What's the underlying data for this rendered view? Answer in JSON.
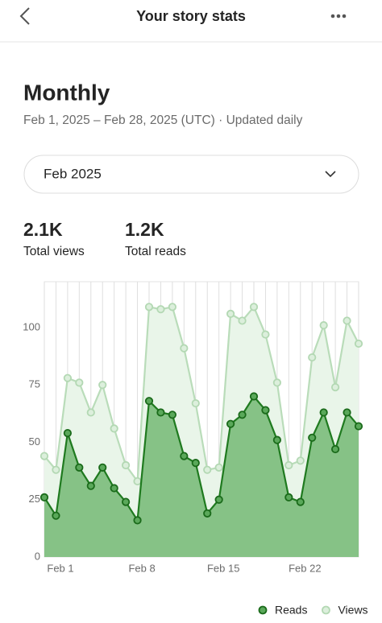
{
  "header": {
    "title": "Your story stats"
  },
  "period": {
    "title": "Monthly",
    "range": "Feb 1, 2025 – Feb 28, 2025 (UTC) · Updated daily"
  },
  "selector": {
    "value": "Feb 2025"
  },
  "stats": [
    {
      "value": "2.1K",
      "label": "Total views"
    },
    {
      "value": "1.2K",
      "label": "Total reads"
    }
  ],
  "chart_data": {
    "type": "area",
    "categories": [
      "Feb 1",
      null,
      null,
      null,
      null,
      null,
      null,
      "Feb 8",
      null,
      null,
      null,
      null,
      null,
      null,
      "Feb 15",
      null,
      null,
      null,
      null,
      null,
      null,
      "Feb 22",
      null,
      null,
      null,
      null,
      null,
      null
    ],
    "series": [
      {
        "name": "Reads",
        "color": "#1f7a1f",
        "values": [
          26,
          18,
          54,
          39,
          31,
          39,
          30,
          24,
          16,
          68,
          63,
          62,
          44,
          41,
          19,
          25,
          58,
          62,
          70,
          64,
          51,
          26,
          24,
          52,
          63,
          47,
          63,
          57
        ]
      },
      {
        "name": "Views",
        "color": "#b9dcb9",
        "values": [
          44,
          38,
          78,
          76,
          63,
          75,
          56,
          40,
          33,
          109,
          108,
          109,
          91,
          67,
          38,
          39,
          106,
          103,
          109,
          97,
          76,
          40,
          42,
          87,
          101,
          74,
          103,
          93
        ]
      }
    ],
    "ylim": [
      0,
      120
    ],
    "yticks": [
      0,
      25,
      50,
      75,
      100
    ],
    "grid": true
  }
}
